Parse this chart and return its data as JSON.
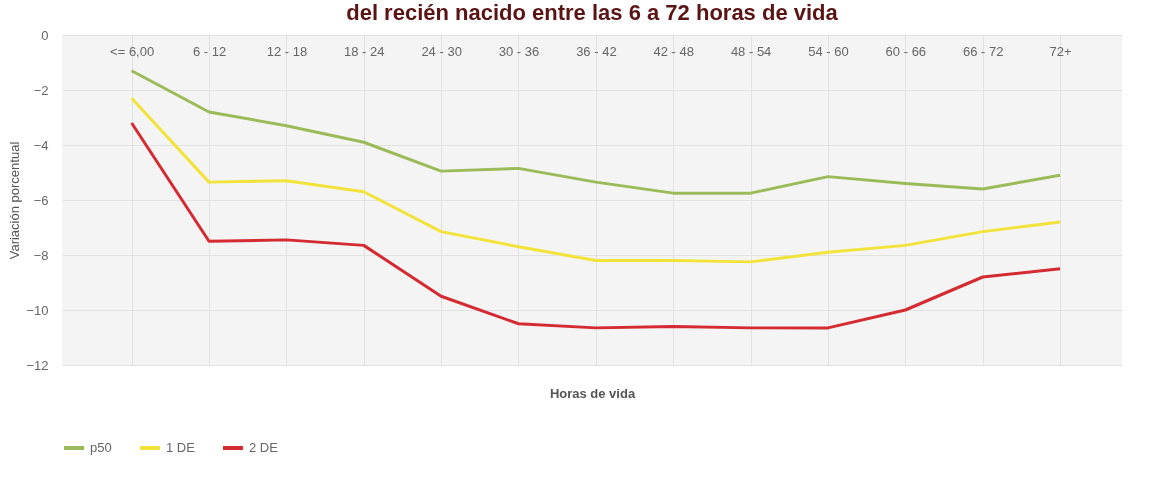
{
  "chart_data": {
    "type": "line",
    "title": "del recién nacido entre las 6 a 72 horas de vida",
    "xlabel": "Horas de vida",
    "ylabel": "Variación porcentual",
    "categories": [
      "<= 6,00",
      "6 - 12",
      "12 - 18",
      "18 - 24",
      "24 - 30",
      "30 - 36",
      "36 - 42",
      "42 - 48",
      "48 - 54",
      "54 - 60",
      "60 - 66",
      "66 - 72",
      "72+"
    ],
    "series": [
      {
        "name": "p50",
        "color": "#9bbb59",
        "values": [
          -1.3,
          -2.8,
          -3.3,
          -3.9,
          -4.95,
          -4.85,
          -5.35,
          -5.75,
          -5.75,
          -5.15,
          -5.4,
          -5.6,
          -5.1
        ]
      },
      {
        "name": "1 DE",
        "color": "#f2e33a",
        "values": [
          -2.3,
          -5.35,
          -5.3,
          -5.7,
          -7.15,
          -7.7,
          -8.2,
          -8.2,
          -8.25,
          -7.9,
          -7.65,
          -7.15,
          -6.8
        ]
      },
      {
        "name": "2 DE",
        "color": "#d42a32",
        "values": [
          -3.2,
          -7.5,
          -7.45,
          -7.65,
          -9.5,
          -10.5,
          -10.65,
          -10.6,
          -10.65,
          -10.65,
          -10.0,
          -8.8,
          -8.5
        ]
      }
    ],
    "ylim": [
      -12,
      0
    ],
    "yticks": [
      0,
      -2,
      -4,
      -6,
      -8,
      -10,
      -12
    ],
    "grid": true,
    "legend": "bottom",
    "marker": "none",
    "line_style": "solid"
  }
}
